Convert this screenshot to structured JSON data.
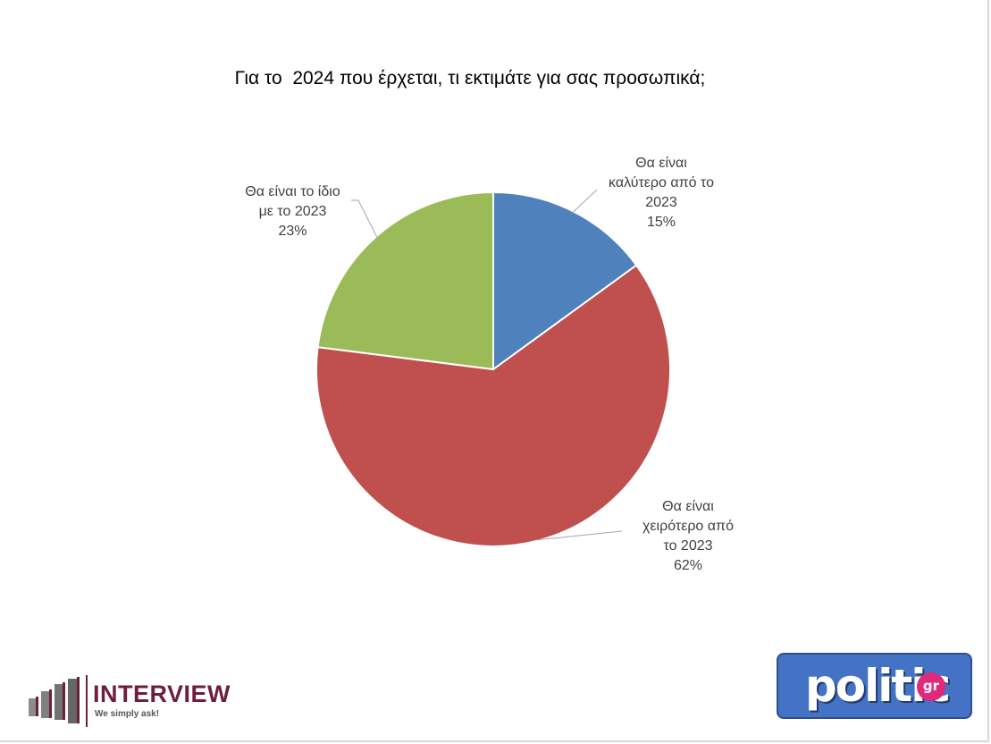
{
  "title": "Για το  2024 που έρχεται, τι εκτιμάτε για σας προσωπικά;",
  "chart_data": {
    "type": "pie",
    "title": "Για το  2024 που έρχεται, τι εκτιμάτε για σας προσωπικά;",
    "slices": [
      {
        "label_lines": [
          "Θα είναι",
          "καλύτερο από το",
          "2023"
        ],
        "value": 15,
        "value_label": "15%",
        "color": "#4f81bd"
      },
      {
        "label_lines": [
          "Θα είναι",
          "χειρότερο από",
          "το 2023"
        ],
        "value": 62,
        "value_label": "62%",
        "color": "#c0504d"
      },
      {
        "label_lines": [
          "Θα είναι το ίδιο",
          "με το 2023"
        ],
        "value": 23,
        "value_label": "23%",
        "color": "#9bbb59"
      }
    ],
    "legend": "none",
    "data_labels": "outside with leader lines"
  },
  "logos": {
    "interview": {
      "name": "INTERVIEW",
      "tagline": "We simply ask!",
      "color": "#6d1f3f"
    },
    "politic": {
      "name": "politic",
      "suffix": "gr",
      "color": "#4472c4",
      "accent": "#e0297a"
    }
  }
}
